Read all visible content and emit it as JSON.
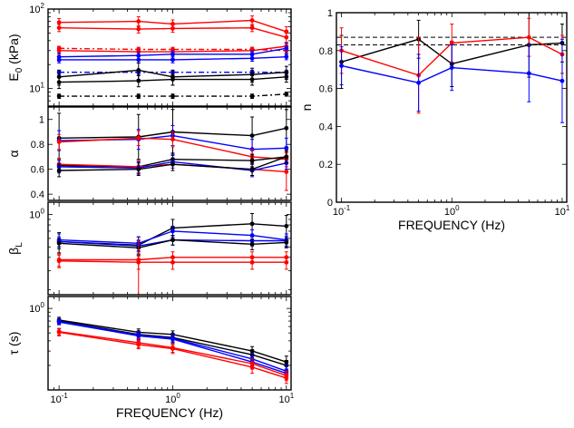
{
  "chart_data": [
    {
      "id": "E0",
      "type": "line",
      "ylabel": "E0 (kPa)",
      "yscale": "log",
      "ylim": [
        6,
        100
      ],
      "xlim": [
        0.08,
        11
      ],
      "xscale": "log",
      "xticks": [
        0.1,
        1,
        10
      ],
      "xtick_labels": [
        "10^-1",
        "10^0",
        "10^1"
      ],
      "yticks": [
        10,
        100
      ],
      "ytick_labels": [
        "10^1",
        "10^2"
      ],
      "show_xticklabels": false,
      "x": [
        0.1,
        0.5,
        1,
        5,
        10
      ],
      "series": [
        {
          "name": "red-1",
          "color": "#ff0000",
          "dash": "solid",
          "values": [
            68,
            70,
            65,
            72,
            52
          ],
          "err": [
            8,
            10,
            8,
            10,
            8
          ]
        },
        {
          "name": "red-2",
          "color": "#ff0000",
          "dash": "solid",
          "values": [
            58,
            56,
            57,
            58,
            44
          ],
          "err": [
            6,
            6,
            6,
            6,
            6
          ]
        },
        {
          "name": "red-3",
          "color": "#ff0000",
          "dash": "dashdot",
          "values": [
            32,
            31,
            31,
            31,
            30
          ],
          "err": [
            2,
            2,
            2,
            2,
            2
          ]
        },
        {
          "name": "red-4",
          "color": "#ff0000",
          "dash": "solid",
          "values": [
            30,
            29,
            29,
            30,
            34
          ],
          "err": [
            3,
            3,
            3,
            3,
            4
          ]
        },
        {
          "name": "blue-1",
          "color": "#0000ff",
          "dash": "solid",
          "values": [
            25,
            26,
            27,
            27,
            32
          ],
          "err": [
            3,
            3,
            3,
            3,
            5
          ]
        },
        {
          "name": "blue-2",
          "color": "#0000ff",
          "dash": "solid",
          "values": [
            23,
            23,
            23,
            24,
            25
          ],
          "err": [
            2,
            2,
            2,
            2,
            2
          ]
        },
        {
          "name": "blue-3",
          "color": "#0000ff",
          "dash": "dashdot",
          "values": [
            16,
            16,
            16,
            16,
            16
          ],
          "err": [
            1,
            1,
            1,
            1,
            1
          ]
        },
        {
          "name": "black-1",
          "color": "#000000",
          "dash": "solid",
          "values": [
            14,
            17,
            14,
            15,
            16
          ],
          "err": [
            3,
            4,
            3,
            3,
            3
          ]
        },
        {
          "name": "black-2",
          "color": "#000000",
          "dash": "solid",
          "values": [
            12,
            12.5,
            13,
            13,
            14
          ],
          "err": [
            2,
            2,
            2,
            2,
            2
          ]
        },
        {
          "name": "black-3",
          "color": "#000000",
          "dash": "dashdot",
          "values": [
            8,
            8,
            8,
            8,
            8.5
          ],
          "err": [
            0.5,
            0.5,
            0.5,
            0.5,
            0.5
          ]
        }
      ]
    },
    {
      "id": "alpha",
      "type": "line",
      "ylabel": "α",
      "yscale": "linear",
      "ylim": [
        0.35,
        1.1
      ],
      "xlim": [
        0.08,
        11
      ],
      "xscale": "log",
      "xticks": [
        0.1,
        1,
        10
      ],
      "yticks": [
        0.4,
        0.6,
        0.8,
        1
      ],
      "ytick_labels": [
        "0.4",
        "0.6",
        "0.8",
        "1"
      ],
      "show_xticklabels": false,
      "x": [
        0.1,
        0.5,
        1,
        5,
        10
      ],
      "series": [
        {
          "name": "black-1",
          "color": "#000000",
          "dash": "solid",
          "values": [
            0.85,
            0.86,
            0.9,
            0.87,
            0.93
          ],
          "err": [
            0.2,
            0.18,
            0.18,
            0.15,
            0.15
          ]
        },
        {
          "name": "blue-1",
          "color": "#0000ff",
          "dash": "solid",
          "values": [
            0.83,
            0.84,
            0.87,
            0.76,
            0.77
          ],
          "err": [
            0.08,
            0.08,
            0.08,
            0.08,
            0.08
          ]
        },
        {
          "name": "red-1",
          "color": "#ff0000",
          "dash": "solid",
          "values": [
            0.82,
            0.85,
            0.84,
            0.7,
            0.68
          ],
          "err": [
            0.06,
            0.06,
            0.06,
            0.06,
            0.06
          ]
        },
        {
          "name": "black-2",
          "color": "#000000",
          "dash": "solid",
          "values": [
            0.63,
            0.62,
            0.68,
            0.67,
            0.7
          ],
          "err": [
            0.05,
            0.05,
            0.05,
            0.05,
            0.05
          ]
        },
        {
          "name": "red-2",
          "color": "#ff0000",
          "dash": "solid",
          "values": [
            0.64,
            0.62,
            0.64,
            0.6,
            0.58
          ],
          "err": [
            0.05,
            0.05,
            0.05,
            0.05,
            0.15
          ]
        },
        {
          "name": "blue-2",
          "color": "#0000ff",
          "dash": "solid",
          "values": [
            0.62,
            0.61,
            0.66,
            0.59,
            0.65
          ],
          "err": [
            0.05,
            0.05,
            0.05,
            0.05,
            0.05
          ]
        },
        {
          "name": "black-3",
          "color": "#000000",
          "dash": "solid",
          "values": [
            0.59,
            0.6,
            0.64,
            0.6,
            0.7
          ],
          "err": [
            0.05,
            0.05,
            0.05,
            0.05,
            0.05
          ]
        }
      ]
    },
    {
      "id": "beta",
      "type": "line",
      "ylabel": "βL",
      "yscale": "log",
      "ylim": [
        0.18,
        1.3
      ],
      "xlim": [
        0.08,
        11
      ],
      "xscale": "log",
      "xticks": [
        0.1,
        1,
        10
      ],
      "yticks": [
        1
      ],
      "ytick_labels": [
        "10^0"
      ],
      "show_xticklabels": false,
      "x": [
        0.1,
        0.5,
        1,
        5,
        10
      ],
      "series": [
        {
          "name": "black-1",
          "color": "#000000",
          "dash": "solid",
          "values": [
            0.56,
            0.52,
            0.75,
            0.82,
            0.78
          ],
          "err": [
            0.12,
            0.1,
            0.15,
            0.2,
            0.2
          ]
        },
        {
          "name": "blue-1",
          "color": "#0000ff",
          "dash": "solid",
          "values": [
            0.58,
            0.54,
            0.7,
            0.64,
            0.58
          ],
          "err": [
            0.08,
            0.08,
            0.08,
            0.08,
            0.08
          ]
        },
        {
          "name": "blue-2",
          "color": "#0000ff",
          "dash": "solid",
          "values": [
            0.56,
            0.51,
            0.58,
            0.57,
            0.57
          ],
          "err": [
            0.06,
            0.06,
            0.06,
            0.06,
            0.06
          ]
        },
        {
          "name": "black-2",
          "color": "#000000",
          "dash": "solid",
          "values": [
            0.54,
            0.49,
            0.58,
            0.53,
            0.55
          ],
          "err": [
            0.06,
            0.06,
            0.06,
            0.06,
            0.06
          ]
        },
        {
          "name": "red-1",
          "color": "#ff0000",
          "dash": "solid",
          "values": [
            0.38,
            0.38,
            0.4,
            0.4,
            0.4
          ],
          "err": [
            0.05,
            0.2,
            0.05,
            0.05,
            0.05
          ]
        },
        {
          "name": "red-2",
          "color": "#ff0000",
          "dash": "solid",
          "values": [
            0.37,
            0.36,
            0.36,
            0.36,
            0.36
          ],
          "err": [
            0.05,
            0.05,
            0.05,
            0.05,
            0.05
          ]
        }
      ]
    },
    {
      "id": "tau",
      "type": "line",
      "ylabel": "τ (s)",
      "yscale": "log",
      "ylim": [
        0.1,
        1.4
      ],
      "xlim": [
        0.08,
        11
      ],
      "xscale": "log",
      "xticks": [
        0.1,
        1,
        10
      ],
      "xtick_labels": [
        "10^-1",
        "10^0",
        "10^1"
      ],
      "yticks": [
        1
      ],
      "ytick_labels": [
        "10^0"
      ],
      "show_xticklabels": true,
      "xlabel": "FREQUENCY (Hz)",
      "x": [
        0.1,
        0.5,
        1,
        5,
        10
      ],
      "series": [
        {
          "name": "black-1",
          "color": "#000000",
          "dash": "solid",
          "values": [
            0.72,
            0.51,
            0.48,
            0.3,
            0.22
          ],
          "err": [
            0.06,
            0.05,
            0.05,
            0.04,
            0.04
          ]
        },
        {
          "name": "black-2",
          "color": "#000000",
          "dash": "solid",
          "values": [
            0.7,
            0.48,
            0.44,
            0.27,
            0.2
          ],
          "err": [
            0.05,
            0.05,
            0.05,
            0.04,
            0.03
          ]
        },
        {
          "name": "blue-1",
          "color": "#0000ff",
          "dash": "solid",
          "values": [
            0.69,
            0.47,
            0.43,
            0.24,
            0.17
          ],
          "err": [
            0.05,
            0.05,
            0.05,
            0.04,
            0.03
          ]
        },
        {
          "name": "blue-2",
          "color": "#0000ff",
          "dash": "solid",
          "values": [
            0.68,
            0.46,
            0.42,
            0.22,
            0.16
          ],
          "err": [
            0.05,
            0.05,
            0.05,
            0.03,
            0.02
          ]
        },
        {
          "name": "red-1",
          "color": "#ff0000",
          "dash": "solid",
          "values": [
            0.52,
            0.38,
            0.33,
            0.21,
            0.15
          ],
          "err": [
            0.05,
            0.05,
            0.04,
            0.03,
            0.02
          ]
        },
        {
          "name": "red-2",
          "color": "#ff0000",
          "dash": "solid",
          "values": [
            0.51,
            0.36,
            0.32,
            0.19,
            0.14
          ],
          "err": [
            0.05,
            0.04,
            0.04,
            0.03,
            0.02
          ]
        }
      ]
    },
    {
      "id": "n",
      "type": "line",
      "ylabel": "n",
      "yscale": "linear",
      "ylim": [
        0,
        1
      ],
      "xlim": [
        0.09,
        11
      ],
      "xscale": "log",
      "xticks": [
        0.1,
        1,
        10
      ],
      "xtick_labels": [
        "10^-1",
        "10^0",
        "10^1"
      ],
      "yticks": [
        0,
        0.2,
        0.4,
        0.6,
        0.8,
        1
      ],
      "ytick_labels": [
        "0",
        "0.2",
        "0.4",
        "0.6",
        "0.8",
        "1"
      ],
      "show_xticklabels": true,
      "xlabel": "FREQUENCY (Hz)",
      "x": [
        0.1,
        0.5,
        1,
        5,
        10
      ],
      "hlines": [
        {
          "value": 0.87,
          "color": "#000000",
          "dash": "dashed"
        },
        {
          "value": 0.83,
          "color": "#000000",
          "dash": "dashed"
        }
      ],
      "series": [
        {
          "name": "black-1",
          "color": "#000000",
          "dash": "solid",
          "values": [
            0.74,
            0.86,
            0.73,
            0.83,
            0.84
          ],
          "err": [
            0.14,
            0.1,
            0.12,
            0.17,
            0.1
          ]
        },
        {
          "name": "red-1",
          "color": "#ff0000",
          "dash": "solid",
          "values": [
            0.8,
            0.67,
            0.84,
            0.87,
            0.78
          ],
          "err": [
            0.12,
            0.2,
            0.1,
            0.1,
            0.1
          ]
        },
        {
          "name": "blue-1",
          "color": "#0000ff",
          "dash": "solid",
          "values": [
            0.72,
            0.63,
            0.71,
            0.68,
            0.64
          ],
          "err": [
            0.1,
            0.15,
            0.12,
            0.15,
            0.22
          ]
        }
      ]
    }
  ]
}
